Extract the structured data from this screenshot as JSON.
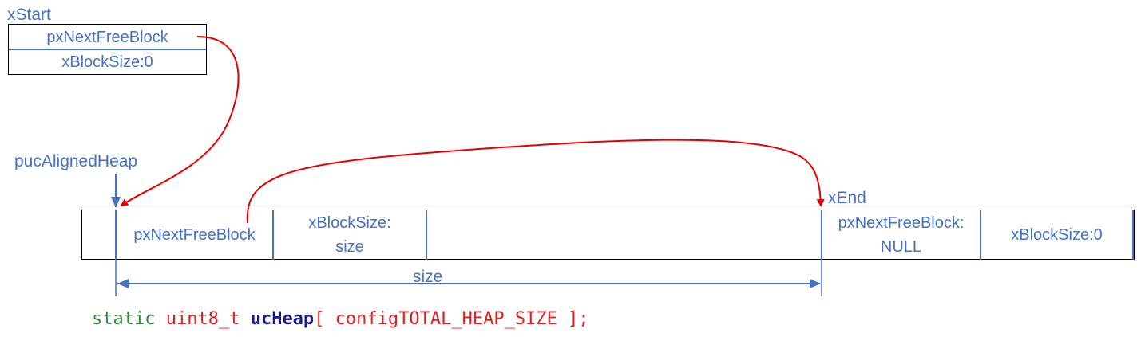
{
  "xstart": {
    "label": "xStart",
    "field1": "pxNextFreeBlock",
    "field2": "xBlockSize:0"
  },
  "heap": {
    "pointer_label": "pucAlignedHeap",
    "cell_next": "pxNextFreeBlock",
    "cell_size_line1": "xBlockSize:",
    "cell_size_line2": "size"
  },
  "xend": {
    "label": "xEnd",
    "field1_line1": "pxNextFreeBlock:",
    "field1_line2": "NULL",
    "field2": "xBlockSize:0"
  },
  "dimension": {
    "label": "size"
  },
  "code": {
    "keyword": "static",
    "type": "uint8_t",
    "identifier": "ucHeap",
    "open": "[",
    "macro": "configTOTAL_HEAP_SIZE",
    "close": "];"
  },
  "colors": {
    "label_blue": "#4472c4",
    "arrow_red": "#e60000",
    "border": "#000000"
  }
}
